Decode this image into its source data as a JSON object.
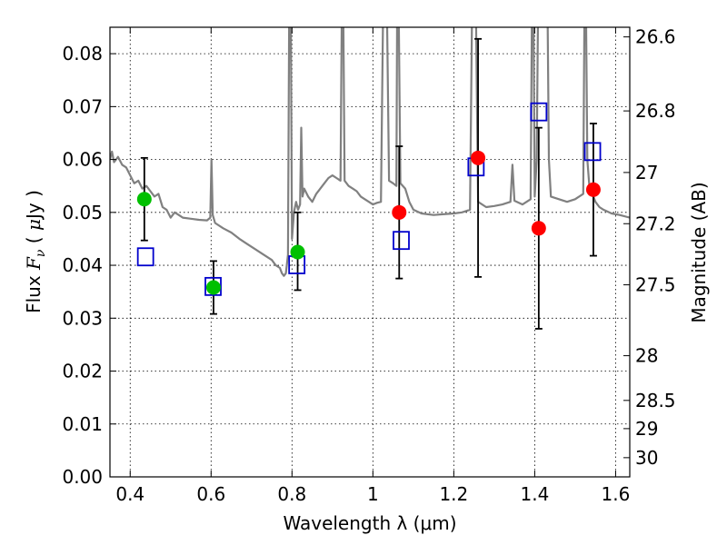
{
  "chart_data": {
    "type": "scatter",
    "xlabel": "Wavelength  λ (μm)",
    "ylabel_parts": [
      "Flux  ",
      "F",
      "ν",
      "  ( ",
      "μ",
      "Jy )"
    ],
    "y2label": "Magnitude (AB)",
    "xlim": [
      0.35,
      1.635
    ],
    "ylim": [
      0.0,
      0.085
    ],
    "x_ticks": [
      0.4,
      0.6,
      0.8,
      1.0,
      1.2,
      1.4,
      1.6
    ],
    "x_tick_labels": [
      "0.4",
      "0.6",
      "0.8",
      "1",
      "1.2",
      "1.4",
      "1.6"
    ],
    "y_ticks": [
      0.0,
      0.01,
      0.02,
      0.03,
      0.04,
      0.05,
      0.06,
      0.07,
      0.08
    ],
    "y_tick_labels": [
      "0.00",
      "0.01",
      "0.02",
      "0.03",
      "0.04",
      "0.05",
      "0.06",
      "0.07",
      "0.08"
    ],
    "y2_ticks": [
      26.6,
      26.8,
      27.0,
      27.2,
      27.5,
      28.0,
      28.5,
      29.0,
      30.0
    ],
    "y2_tick_labels": [
      "26.6",
      "26.8",
      "27",
      "27.2",
      "27.5",
      "28",
      "28.5",
      "29",
      "30"
    ],
    "grid": true,
    "colors": {
      "sed_line": "#808080",
      "observed_green": "#00c000",
      "observed_red": "#ff0000",
      "model_box": "#0000cc",
      "error_bar": "#000000"
    },
    "series": [
      {
        "kind": "observed_green",
        "points": [
          {
            "x": 0.435,
            "y": 0.0525,
            "yerr_low": 0.0078,
            "yerr_high": 0.0078
          },
          {
            "x": 0.606,
            "y": 0.0358,
            "yerr_low": 0.005,
            "yerr_high": 0.005
          },
          {
            "x": 0.814,
            "y": 0.0425,
            "yerr_low": 0.0072,
            "yerr_high": 0.0075
          }
        ]
      },
      {
        "kind": "observed_red",
        "points": [
          {
            "x": 1.065,
            "y": 0.05,
            "yerr_low": 0.0125,
            "yerr_high": 0.0125
          },
          {
            "x": 1.26,
            "y": 0.0603,
            "yerr_low": 0.0225,
            "yerr_high": 0.0225
          },
          {
            "x": 1.41,
            "y": 0.047,
            "yerr_low": 0.019,
            "yerr_high": 0.019
          },
          {
            "x": 1.545,
            "y": 0.0543,
            "yerr_low": 0.0125,
            "yerr_high": 0.0125
          }
        ]
      },
      {
        "kind": "model_box",
        "points": [
          {
            "x": 0.438,
            "y": 0.0416
          },
          {
            "x": 0.605,
            "y": 0.036
          },
          {
            "x": 0.812,
            "y": 0.0401
          },
          {
            "x": 1.07,
            "y": 0.0447
          },
          {
            "x": 1.255,
            "y": 0.0586
          },
          {
            "x": 1.41,
            "y": 0.069
          },
          {
            "x": 1.543,
            "y": 0.0615
          }
        ]
      }
    ],
    "sed_spectrum": [
      [
        0.35,
        0.06
      ],
      [
        0.355,
        0.0615
      ],
      [
        0.36,
        0.0595
      ],
      [
        0.37,
        0.0605
      ],
      [
        0.38,
        0.059
      ],
      [
        0.39,
        0.0585
      ],
      [
        0.4,
        0.057
      ],
      [
        0.41,
        0.0555
      ],
      [
        0.42,
        0.056
      ],
      [
        0.43,
        0.0545
      ],
      [
        0.44,
        0.055
      ],
      [
        0.45,
        0.054
      ],
      [
        0.46,
        0.053
      ],
      [
        0.47,
        0.0535
      ],
      [
        0.48,
        0.051
      ],
      [
        0.49,
        0.0505
      ],
      [
        0.5,
        0.049
      ],
      [
        0.51,
        0.05
      ],
      [
        0.52,
        0.0495
      ],
      [
        0.53,
        0.049
      ],
      [
        0.55,
        0.0488
      ],
      [
        0.57,
        0.0486
      ],
      [
        0.59,
        0.0485
      ],
      [
        0.598,
        0.049
      ],
      [
        0.601,
        0.06
      ],
      [
        0.604,
        0.0495
      ],
      [
        0.61,
        0.048
      ],
      [
        0.63,
        0.047
      ],
      [
        0.65,
        0.0462
      ],
      [
        0.67,
        0.045
      ],
      [
        0.69,
        0.044
      ],
      [
        0.71,
        0.043
      ],
      [
        0.73,
        0.042
      ],
      [
        0.75,
        0.041
      ],
      [
        0.76,
        0.04
      ],
      [
        0.77,
        0.0395
      ],
      [
        0.775,
        0.0385
      ],
      [
        0.78,
        0.038
      ],
      [
        0.785,
        0.0385
      ],
      [
        0.79,
        0.042
      ],
      [
        0.793,
        0.087
      ],
      [
        0.797,
        0.087
      ],
      [
        0.8,
        0.045
      ],
      [
        0.805,
        0.05
      ],
      [
        0.81,
        0.052
      ],
      [
        0.815,
        0.0505
      ],
      [
        0.82,
        0.0515
      ],
      [
        0.823,
        0.066
      ],
      [
        0.826,
        0.053
      ],
      [
        0.83,
        0.0545
      ],
      [
        0.84,
        0.053
      ],
      [
        0.85,
        0.052
      ],
      [
        0.86,
        0.0535
      ],
      [
        0.87,
        0.0545
      ],
      [
        0.88,
        0.0555
      ],
      [
        0.89,
        0.0565
      ],
      [
        0.9,
        0.057
      ],
      [
        0.91,
        0.0565
      ],
      [
        0.92,
        0.056
      ],
      [
        0.923,
        0.087
      ],
      [
        0.927,
        0.087
      ],
      [
        0.93,
        0.056
      ],
      [
        0.94,
        0.055
      ],
      [
        0.95,
        0.0545
      ],
      [
        0.96,
        0.054
      ],
      [
        0.97,
        0.053
      ],
      [
        0.98,
        0.0525
      ],
      [
        0.99,
        0.052
      ],
      [
        1.0,
        0.0515
      ],
      [
        1.01,
        0.0518
      ],
      [
        1.02,
        0.052
      ],
      [
        1.025,
        0.087
      ],
      [
        1.035,
        0.087
      ],
      [
        1.04,
        0.056
      ],
      [
        1.05,
        0.0555
      ],
      [
        1.058,
        0.055
      ],
      [
        1.06,
        0.087
      ],
      [
        1.064,
        0.087
      ],
      [
        1.068,
        0.0555
      ],
      [
        1.08,
        0.0545
      ],
      [
        1.09,
        0.052
      ],
      [
        1.1,
        0.0505
      ],
      [
        1.12,
        0.0498
      ],
      [
        1.15,
        0.0495
      ],
      [
        1.18,
        0.0497
      ],
      [
        1.2,
        0.0498
      ],
      [
        1.22,
        0.05
      ],
      [
        1.24,
        0.0505
      ],
      [
        1.245,
        0.087
      ],
      [
        1.255,
        0.087
      ],
      [
        1.26,
        0.052
      ],
      [
        1.28,
        0.051
      ],
      [
        1.3,
        0.0512
      ],
      [
        1.32,
        0.0515
      ],
      [
        1.34,
        0.052
      ],
      [
        1.345,
        0.059
      ],
      [
        1.35,
        0.0522
      ],
      [
        1.37,
        0.0515
      ],
      [
        1.39,
        0.0525
      ],
      [
        1.393,
        0.087
      ],
      [
        1.397,
        0.087
      ],
      [
        1.4,
        0.053
      ],
      [
        1.405,
        0.06
      ],
      [
        1.408,
        0.087
      ],
      [
        1.432,
        0.087
      ],
      [
        1.435,
        0.06
      ],
      [
        1.44,
        0.053
      ],
      [
        1.46,
        0.0525
      ],
      [
        1.48,
        0.052
      ],
      [
        1.5,
        0.0525
      ],
      [
        1.52,
        0.0535
      ],
      [
        1.523,
        0.087
      ],
      [
        1.527,
        0.087
      ],
      [
        1.53,
        0.06
      ],
      [
        1.535,
        0.055
      ],
      [
        1.55,
        0.052
      ],
      [
        1.56,
        0.051
      ],
      [
        1.57,
        0.0505
      ],
      [
        1.59,
        0.0498
      ],
      [
        1.61,
        0.0495
      ],
      [
        1.635,
        0.049
      ]
    ]
  }
}
